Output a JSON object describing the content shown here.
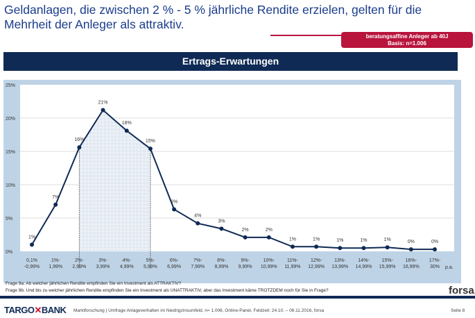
{
  "headline": "Geldanlagen, die zwischen 2 % - 5 % jährliche Rendite erzielen, gelten für die Mehrheit der Anleger als attraktiv.",
  "badge": {
    "line1": "beratungsaffine Anleger ab 40J",
    "line2": "Basis: n=1.006"
  },
  "chart_data": {
    "type": "line",
    "title": "Ertrags-Erwartungen",
    "categories": [
      [
        "0,1%",
        "-0,99%"
      ],
      [
        "1%-",
        "1,99%"
      ],
      [
        "2%-",
        "2,99%"
      ],
      [
        "3%-",
        "3,99%"
      ],
      [
        "4%-",
        "4,99%"
      ],
      [
        "5%-",
        "5,99%"
      ],
      [
        "6%-",
        "6,99%"
      ],
      [
        "7%-",
        "7,99%"
      ],
      [
        "8%-",
        "8,99%"
      ],
      [
        "9%-",
        "9,99%"
      ],
      [
        "10%-",
        "10,99%"
      ],
      [
        "11%-",
        "11,99%"
      ],
      [
        "12%-",
        "12,99%"
      ],
      [
        "13%-",
        "13,99%"
      ],
      [
        "14%-",
        "14,99%"
      ],
      [
        "15%-",
        "15,99%"
      ],
      [
        "16%-",
        "16,99%"
      ],
      [
        "17%-",
        "30%"
      ]
    ],
    "values": [
      1.0,
      7.0,
      15.6,
      21.2,
      18.1,
      15.4,
      6.3,
      4.2,
      3.4,
      2.1,
      2.1,
      0.7,
      0.7,
      0.5,
      0.5,
      0.6,
      0.3,
      0.3
    ],
    "labels": [
      "1%",
      "7%",
      "16%",
      "21%",
      "18%",
      "15%",
      "6%",
      "4%",
      "3%",
      "2%",
      "2%",
      "1%",
      "1%",
      "1%",
      "1%",
      "1%",
      "0%",
      "0%"
    ],
    "x_unit": "p.a.",
    "ylim": [
      0,
      25
    ],
    "yticks": [
      "0%",
      "5%",
      "10%",
      "15%",
      "20%",
      "25%"
    ],
    "highlight_range": [
      "2%-2,99%",
      "5%-5,99%"
    ],
    "grid": true,
    "line_color": "#0f2a55"
  },
  "questions": [
    "Frage 9a: Ab welcher jährlichen Rendite empfinden Sie ein Investment als ATTRAKTIV?",
    "Frage 9b: Und bis zu welcher jährlichen Rendite empfinden Sie ein Investment als UNATTRAKTIV, aber das Investment käme TROTZDEM noch für Sie in Frage?"
  ],
  "forsa": "forsa",
  "logo": {
    "left": "TARGO",
    "right": "BANK"
  },
  "footer": "Marktforschung | Umfrage Anlageverhalten im Niedrigzinsumfeld, n= 1.006, Online-Panel, Feldzeit: 24.10. – 06.11.2016, forsa",
  "page": "Seite 8"
}
